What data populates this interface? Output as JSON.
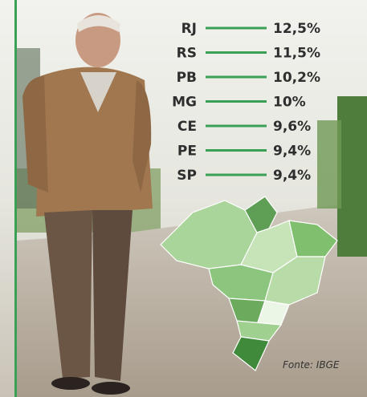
{
  "rows": [
    {
      "label": "RJ",
      "value": "12,5%"
    },
    {
      "label": "RS",
      "value": "11,5%"
    },
    {
      "label": "PB",
      "value": "10,2%"
    },
    {
      "label": "MG",
      "value": "10%"
    },
    {
      "label": "CE",
      "value": "9,6%"
    },
    {
      "label": "PE",
      "value": "9,4%"
    },
    {
      "label": "SP",
      "value": "9,4%"
    }
  ],
  "source": "Fonte: IBGE"
}
